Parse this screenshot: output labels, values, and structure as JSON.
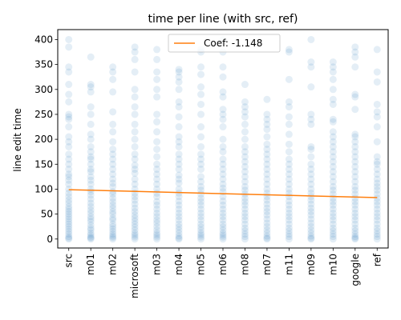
{
  "chart_data": {
    "type": "scatter",
    "title": "time per line (with src, ref)",
    "xlabel": "",
    "ylabel": "line edit time",
    "categories": [
      "src",
      "m01",
      "m02",
      "microsoft",
      "m03",
      "m04",
      "m05",
      "m06",
      "m08",
      "m07",
      "m11",
      "m09",
      "m10",
      "google",
      "ref"
    ],
    "ylim": [
      -18,
      420
    ],
    "yticks": [
      0,
      50,
      100,
      150,
      200,
      250,
      300,
      350,
      400
    ],
    "grid": false,
    "legend_position": "top-center",
    "colors": {
      "points": "#1f77b4",
      "fit_line": "#ff7f0e"
    },
    "series": [
      {
        "kind": "points",
        "values": {
          "src": [
            400,
            385,
            345,
            335,
            310,
            290,
            275,
            250,
            245,
            240,
            225,
            205,
            195,
            185,
            170,
            160,
            150,
            140,
            130,
            125,
            118,
            110,
            100,
            92,
            85,
            78,
            72,
            65,
            60,
            55,
            50,
            45,
            40,
            35,
            30,
            25,
            20,
            15,
            10,
            5,
            2,
            0
          ],
          "m01": [
            365,
            310,
            305,
            295,
            265,
            250,
            230,
            210,
            200,
            185,
            175,
            165,
            160,
            150,
            140,
            135,
            125,
            118,
            110,
            100,
            95,
            88,
            80,
            72,
            65,
            58,
            52,
            45,
            40,
            35,
            28,
            22,
            18,
            12,
            8,
            4,
            2,
            0
          ],
          "m02": [
            345,
            335,
            320,
            295,
            255,
            230,
            215,
            195,
            180,
            170,
            160,
            150,
            140,
            130,
            120,
            112,
            105,
            95,
            90,
            82,
            75,
            68,
            62,
            55,
            50,
            42,
            38,
            30,
            25,
            20,
            15,
            10,
            6,
            3,
            0
          ],
          "microsoft": [
            385,
            375,
            360,
            335,
            300,
            285,
            265,
            250,
            230,
            215,
            200,
            185,
            170,
            160,
            148,
            140,
            132,
            120,
            110,
            100,
            92,
            85,
            78,
            70,
            62,
            55,
            48,
            42,
            36,
            30,
            24,
            18,
            12,
            8,
            4,
            0
          ],
          "m03": [
            380,
            360,
            335,
            320,
            300,
            285,
            250,
            235,
            215,
            195,
            180,
            165,
            150,
            140,
            130,
            120,
            110,
            100,
            92,
            85,
            75,
            68,
            60,
            52,
            45,
            38,
            32,
            25,
            18,
            12,
            8,
            4,
            0
          ],
          "m04": [
            340,
            335,
            325,
            315,
            300,
            275,
            265,
            245,
            225,
            205,
            195,
            185,
            170,
            160,
            150,
            140,
            128,
            120,
            112,
            100,
            92,
            85,
            76,
            68,
            60,
            52,
            45,
            38,
            30,
            24,
            18,
            12,
            6,
            2,
            0
          ],
          "m05": [
            380,
            375,
            345,
            330,
            305,
            290,
            270,
            250,
            225,
            205,
            185,
            170,
            160,
            150,
            140,
            125,
            115,
            105,
            98,
            90,
            82,
            75,
            68,
            60,
            52,
            45,
            38,
            30,
            24,
            18,
            12,
            8,
            4,
            0
          ],
          "m06": [
            400,
            375,
            345,
            325,
            295,
            285,
            260,
            250,
            240,
            225,
            200,
            185,
            175,
            160,
            150,
            140,
            130,
            120,
            110,
            102,
            95,
            85,
            76,
            68,
            60,
            52,
            45,
            38,
            30,
            24,
            18,
            12,
            8,
            4,
            0
          ],
          "m08": [
            310,
            275,
            265,
            255,
            245,
            230,
            215,
            200,
            185,
            175,
            165,
            155,
            145,
            135,
            125,
            115,
            105,
            98,
            90,
            82,
            75,
            68,
            60,
            52,
            45,
            38,
            30,
            22,
            16,
            10,
            5,
            0
          ],
          "m07": [
            280,
            250,
            240,
            230,
            220,
            205,
            190,
            180,
            170,
            160,
            150,
            140,
            130,
            120,
            110,
            100,
            92,
            85,
            78,
            70,
            62,
            55,
            48,
            40,
            32,
            25,
            18,
            12,
            6,
            2,
            0
          ],
          "m11": [
            380,
            375,
            320,
            275,
            265,
            245,
            230,
            210,
            190,
            175,
            160,
            150,
            140,
            130,
            120,
            110,
            100,
            92,
            85,
            76,
            68,
            60,
            52,
            45,
            38,
            30,
            22,
            16,
            10,
            5,
            0
          ],
          "m09": [
            400,
            355,
            345,
            305,
            250,
            240,
            230,
            185,
            180,
            165,
            150,
            140,
            130,
            120,
            110,
            100,
            92,
            85,
            78,
            70,
            62,
            55,
            48,
            40,
            32,
            25,
            18,
            12,
            6,
            2,
            0
          ],
          "m10": [
            355,
            345,
            335,
            320,
            300,
            280,
            270,
            240,
            235,
            215,
            205,
            195,
            185,
            175,
            165,
            155,
            145,
            135,
            125,
            115,
            105,
            98,
            90,
            82,
            75,
            68,
            60,
            52,
            45,
            38,
            30,
            22,
            16,
            10,
            5,
            0
          ],
          "google": [
            385,
            375,
            365,
            345,
            290,
            285,
            260,
            210,
            205,
            195,
            185,
            175,
            165,
            155,
            145,
            135,
            125,
            115,
            105,
            98,
            90,
            82,
            75,
            68,
            60,
            52,
            45,
            38,
            30,
            22,
            16,
            10,
            5,
            2,
            0
          ],
          "ref": [
            380,
            335,
            315,
            270,
            255,
            245,
            225,
            195,
            165,
            155,
            150,
            140,
            130,
            120,
            112,
            105,
            98,
            90,
            82,
            75,
            68,
            60,
            52,
            45,
            38,
            30,
            22,
            16,
            10,
            5,
            0
          ]
        }
      },
      {
        "kind": "fit_line",
        "name": "Coef: -1.148",
        "x_start": "src",
        "x_end": "ref",
        "y_start": 99,
        "y_end": 83
      }
    ]
  }
}
